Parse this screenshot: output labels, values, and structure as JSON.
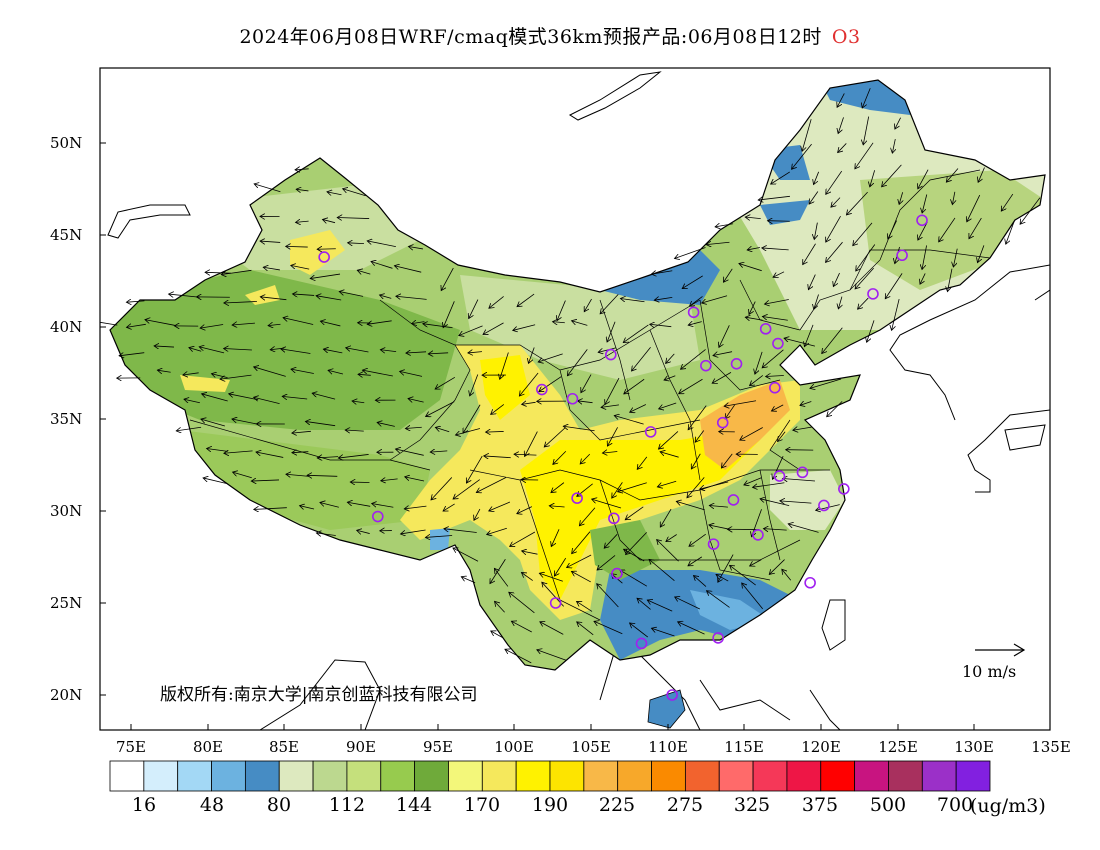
{
  "header": {
    "title": "2024年06月08日WRF/cmaq模式36km预报产品:06月08日12时",
    "species": "O3"
  },
  "axes": {
    "lat_labels": [
      "50N",
      "45N",
      "40N",
      "35N",
      "30N",
      "25N",
      "20N"
    ],
    "lat_values": [
      50,
      45,
      40,
      35,
      30,
      25,
      20
    ],
    "lon_labels": [
      "75E",
      "80E",
      "85E",
      "90E",
      "95E",
      "100E",
      "105E",
      "110E",
      "115E",
      "120E",
      "125E",
      "130E",
      "135E"
    ],
    "lon_values": [
      75,
      80,
      85,
      90,
      95,
      100,
      105,
      110,
      115,
      120,
      125,
      130,
      135
    ],
    "lon_range": [
      73,
      135
    ],
    "lat_range": [
      18,
      54
    ]
  },
  "copyright": "版权所有:南京大学|南京创蓝科技有限公司",
  "wind_reference": "10 m/s",
  "colorbar": {
    "colors": [
      "#ffffff",
      "#d4eefc",
      "#a3d8f5",
      "#6cb2e0",
      "#468cc4",
      "#dde9bf",
      "#bcd88f",
      "#c5e07c",
      "#97cb4e",
      "#6faa3a",
      "#f3f77a",
      "#f5e85c",
      "#fff200",
      "#fde400",
      "#f8b848",
      "#f7a82a",
      "#fa8a00",
      "#f2632e",
      "#ff6a6a",
      "#f53858",
      "#ee1646",
      "#ff0000",
      "#c81480",
      "#a8305e",
      "#9b30c8",
      "#8220e0"
    ],
    "labels": [
      "16",
      "48",
      "80",
      "112",
      "144",
      "170",
      "190",
      "225",
      "275",
      "325",
      "375",
      "500",
      "700"
    ],
    "unit": "(ug/m3)"
  },
  "map": {
    "regions": [
      {
        "name": "background-green",
        "color": "#a9cf72"
      },
      {
        "name": "northeast-light",
        "color": "#dde9bf"
      },
      {
        "name": "northwest-dark-green",
        "color": "#7fb84a"
      },
      {
        "name": "inner-mongolia-blue",
        "color": "#468cc4"
      },
      {
        "name": "north-china-light",
        "color": "#c9dfa0"
      },
      {
        "name": "loess-yellow",
        "color": "#f5e85c"
      },
      {
        "name": "central-yellow",
        "color": "#fff200"
      },
      {
        "name": "north-plain-orange",
        "color": "#f8b848"
      },
      {
        "name": "south-china-blue",
        "color": "#468cc4"
      },
      {
        "name": "south-china-lightblue",
        "color": "#6cb2e0"
      },
      {
        "name": "tibet-green",
        "color": "#97cb4e"
      }
    ],
    "stations": [
      {
        "lon": 87.6,
        "lat": 43.8
      },
      {
        "lon": 91.1,
        "lat": 29.7
      },
      {
        "lon": 101.8,
        "lat": 36.6
      },
      {
        "lon": 103.8,
        "lat": 36.1
      },
      {
        "lon": 106.3,
        "lat": 38.5
      },
      {
        "lon": 108.9,
        "lat": 34.3
      },
      {
        "lon": 104.1,
        "lat": 30.7
      },
      {
        "lon": 106.5,
        "lat": 29.6
      },
      {
        "lon": 106.7,
        "lat": 26.6
      },
      {
        "lon": 102.7,
        "lat": 25.0
      },
      {
        "lon": 108.3,
        "lat": 22.8
      },
      {
        "lon": 110.3,
        "lat": 20.0
      },
      {
        "lon": 113.3,
        "lat": 23.1
      },
      {
        "lon": 119.3,
        "lat": 26.1
      },
      {
        "lon": 115.9,
        "lat": 28.7
      },
      {
        "lon": 113.0,
        "lat": 28.2
      },
      {
        "lon": 114.3,
        "lat": 30.6
      },
      {
        "lon": 113.6,
        "lat": 34.8
      },
      {
        "lon": 117.0,
        "lat": 36.7
      },
      {
        "lon": 114.5,
        "lat": 38.0
      },
      {
        "lon": 112.5,
        "lat": 37.9
      },
      {
        "lon": 111.7,
        "lat": 40.8
      },
      {
        "lon": 116.4,
        "lat": 39.9
      },
      {
        "lon": 117.2,
        "lat": 39.1
      },
      {
        "lon": 117.3,
        "lat": 31.9
      },
      {
        "lon": 118.8,
        "lat": 32.1
      },
      {
        "lon": 120.2,
        "lat": 30.3
      },
      {
        "lon": 121.5,
        "lat": 31.2
      },
      {
        "lon": 123.4,
        "lat": 41.8
      },
      {
        "lon": 125.3,
        "lat": 43.9
      },
      {
        "lon": 126.6,
        "lat": 45.8
      }
    ]
  }
}
